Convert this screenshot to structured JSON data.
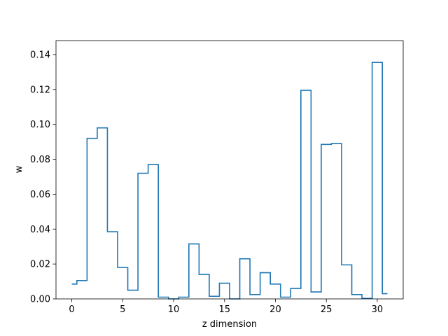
{
  "chart_data": {
    "type": "line",
    "drawstyle": "steps-mid",
    "title": "",
    "xlabel": "z dimension",
    "ylabel": "w",
    "xlim": [
      -1.55,
      32.55
    ],
    "ylim": [
      0.0,
      0.148
    ],
    "xticks": [
      0,
      5,
      10,
      15,
      20,
      25,
      30
    ],
    "xtick_labels": [
      "0",
      "5",
      "10",
      "15",
      "20",
      "25",
      "30"
    ],
    "yticks": [
      0.0,
      0.02,
      0.04,
      0.06,
      0.08,
      0.1,
      0.12,
      0.14
    ],
    "ytick_labels": [
      "0.00",
      "0.02",
      "0.04",
      "0.06",
      "0.08",
      "0.10",
      "0.12",
      "0.14"
    ],
    "grid": false,
    "series": [
      {
        "color": "#1f77b4",
        "x": [
          0,
          1,
          2,
          3,
          4,
          5,
          6,
          7,
          8,
          9,
          10,
          11,
          12,
          13,
          14,
          15,
          16,
          17,
          18,
          19,
          20,
          21,
          22,
          23,
          24,
          25,
          26,
          27,
          28,
          29,
          30,
          31
        ],
        "y": [
          0.0085,
          0.0105,
          0.092,
          0.098,
          0.0385,
          0.018,
          0.005,
          0.072,
          0.077,
          0.001,
          0.0,
          0.001,
          0.0315,
          0.014,
          0.0015,
          0.009,
          0.0,
          0.023,
          0.0025,
          0.015,
          0.0085,
          0.001,
          0.006,
          0.1195,
          0.004,
          0.0885,
          0.089,
          0.0195,
          0.0025,
          0.0003,
          0.1355,
          0.003
        ]
      }
    ]
  }
}
